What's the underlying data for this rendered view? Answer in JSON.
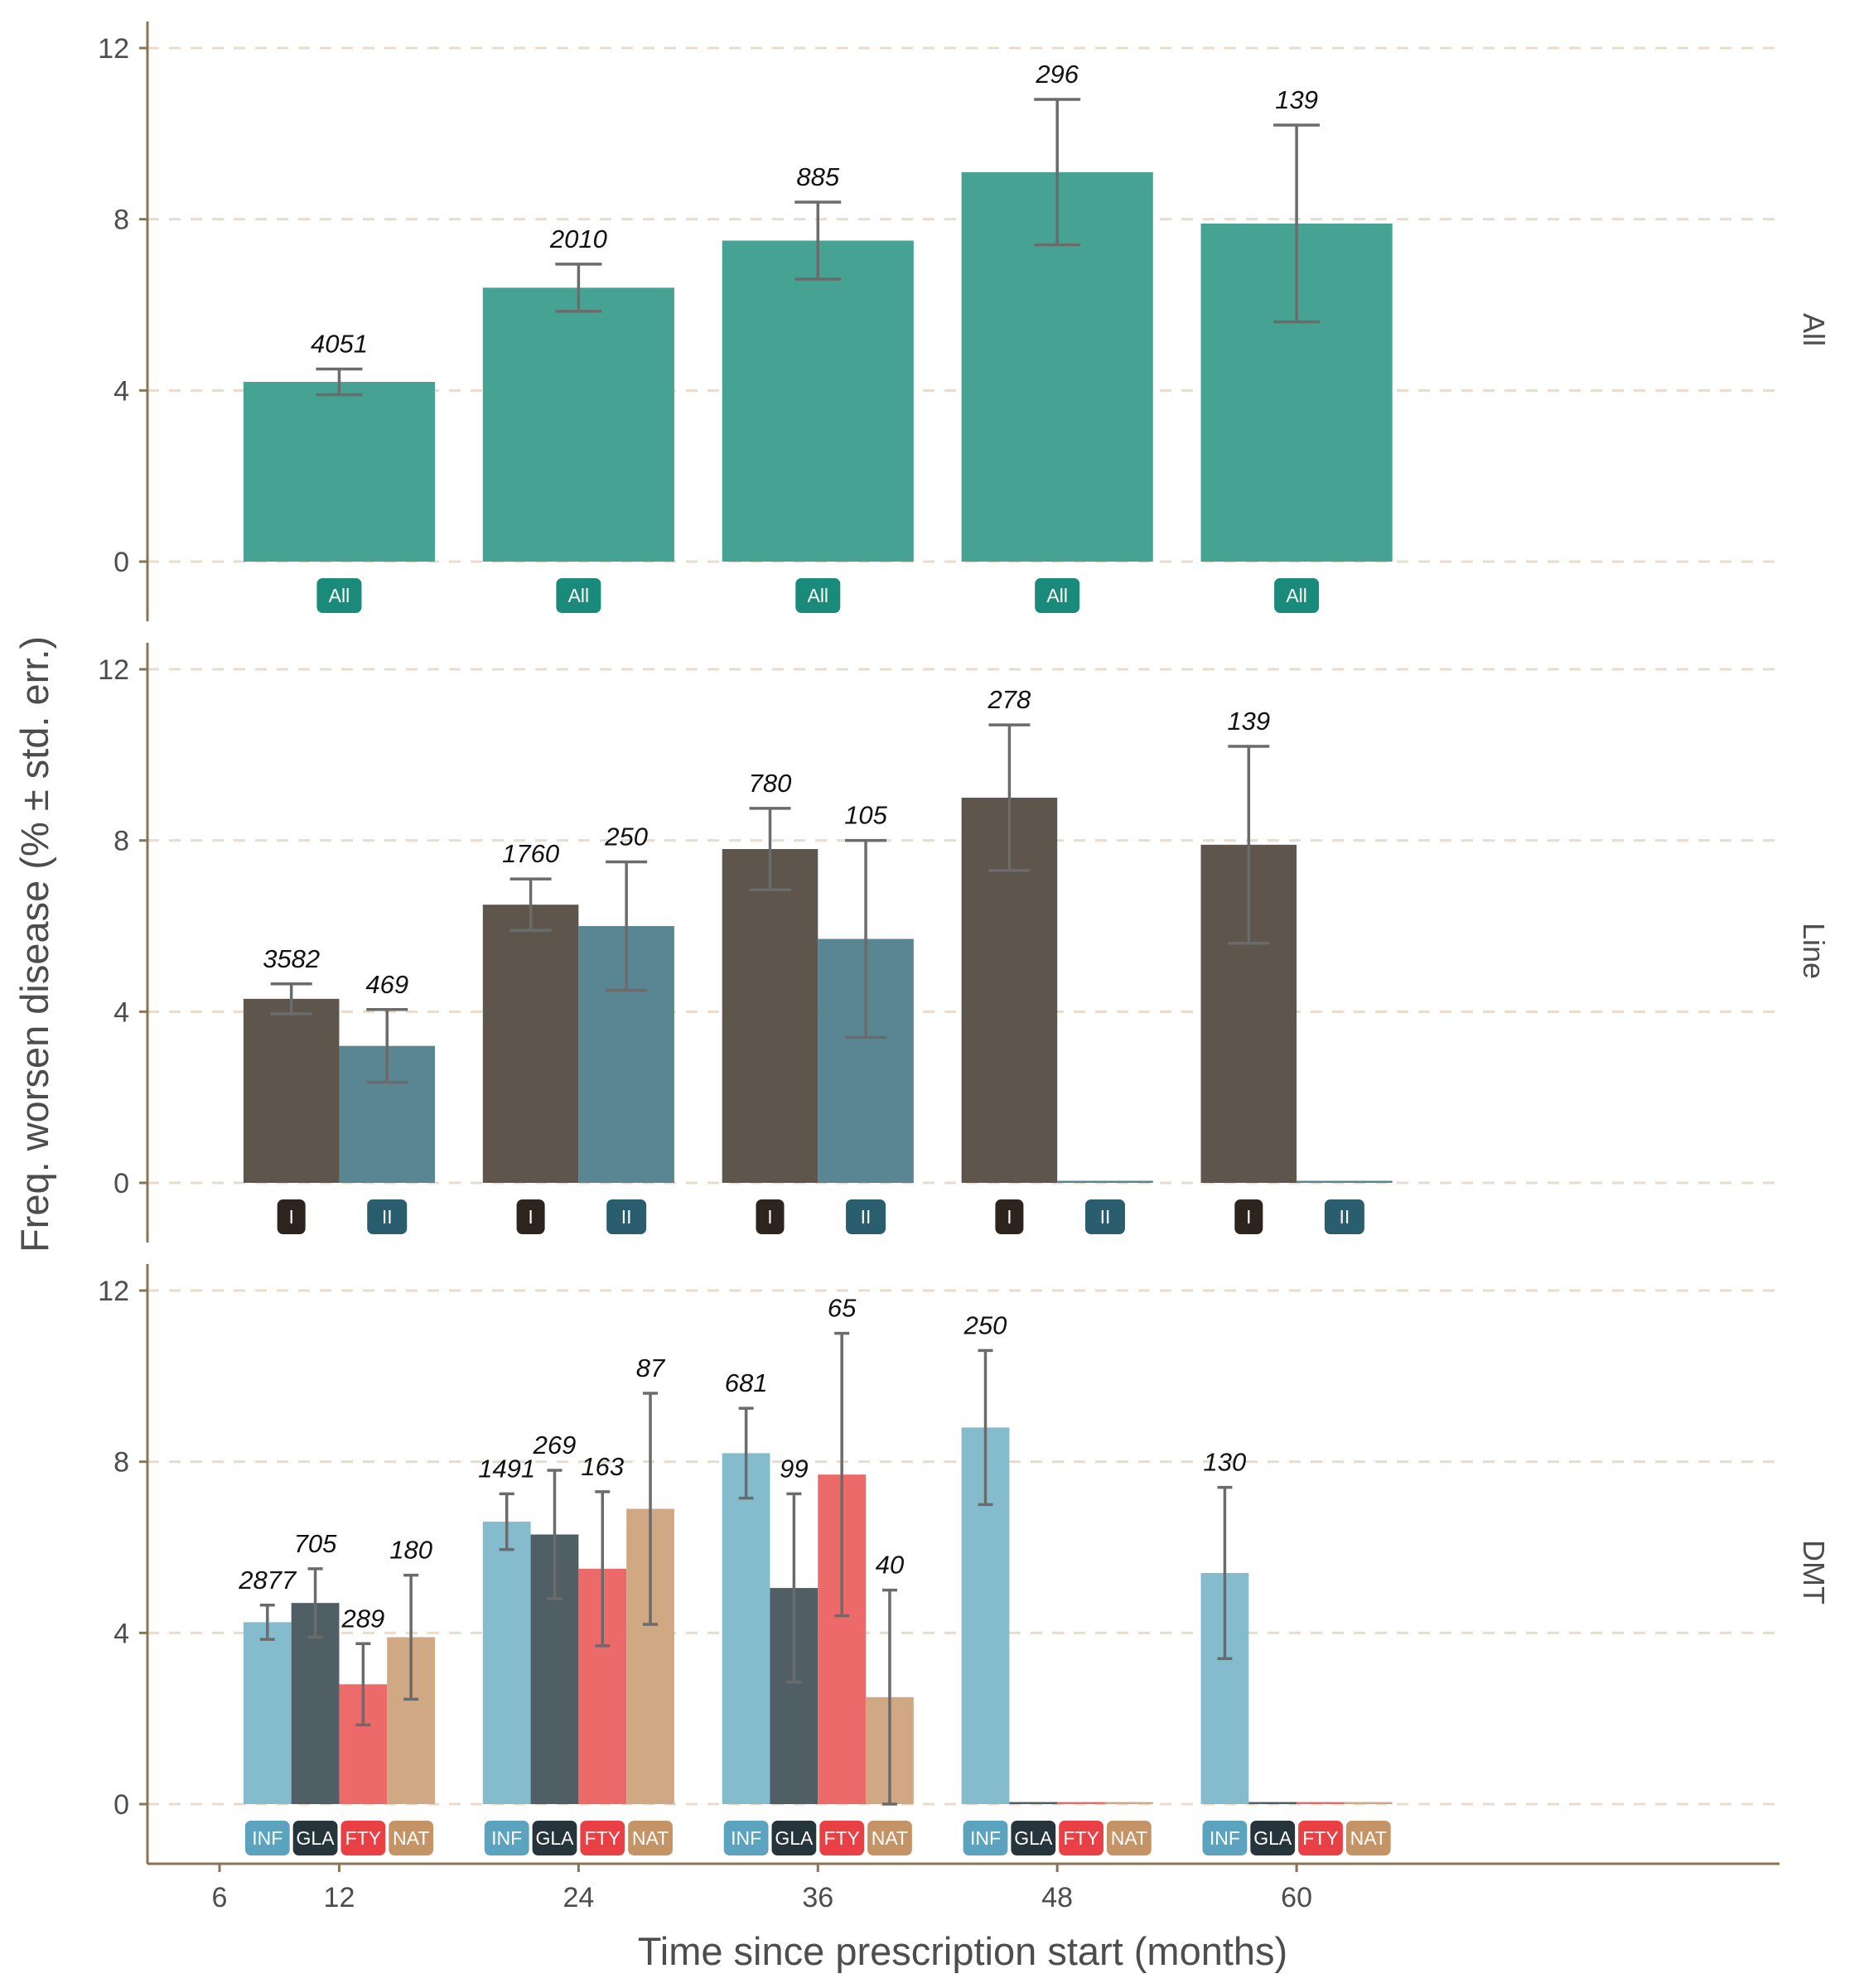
{
  "chart_data": {
    "type": "bar",
    "xlabel": "Time since prescription start (months)",
    "ylabel": "Freq. worsen disease (% ± std. err.)",
    "x_ticks": [
      "6",
      "12",
      "24",
      "36",
      "48",
      "60"
    ],
    "x_tick_values": [
      6,
      12,
      24,
      36,
      48,
      60
    ],
    "ylim": [
      -1.3,
      12.6
    ],
    "y_ticks": [
      0,
      4,
      8,
      12
    ],
    "y_tick_labels": [
      "0",
      "4",
      "8",
      "12"
    ],
    "categories": [
      "12",
      "24",
      "36",
      "48",
      "60"
    ],
    "panels": [
      {
        "strip": "All",
        "series": [
          {
            "name": "All",
            "color": "#46a394",
            "badge_color": "#1a8a7a",
            "values": [
              4.2,
              6.4,
              7.5,
              9.1,
              7.9
            ],
            "err": [
              0.3,
              0.55,
              0.9,
              1.7,
              2.3
            ],
            "n": [
              "4051",
              "2010",
              "885",
              "296",
              "139"
            ]
          }
        ]
      },
      {
        "strip": "Line",
        "series": [
          {
            "name": "I",
            "color": "#5e554c",
            "badge_color": "#2d241d",
            "values": [
              4.3,
              6.5,
              7.8,
              9.0,
              7.9
            ],
            "err": [
              0.35,
              0.6,
              0.95,
              1.7,
              2.3
            ],
            "n": [
              "3582",
              "1760",
              "780",
              "278",
              "139"
            ]
          },
          {
            "name": "II",
            "color": "#5a8592",
            "badge_color": "#2a5e6e",
            "values": [
              3.2,
              6.0,
              5.7,
              0,
              0
            ],
            "err": [
              0.85,
              1.5,
              2.3,
              null,
              null
            ],
            "n": [
              "469",
              "250",
              "105",
              "",
              ""
            ]
          }
        ]
      },
      {
        "strip": "DMT",
        "series": [
          {
            "name": "INF",
            "color": "#84bccd",
            "badge_color": "#5ba3be",
            "values": [
              4.25,
              6.6,
              8.2,
              8.8,
              5.4
            ],
            "err": [
              0.4,
              0.65,
              1.05,
              1.8,
              2.0
            ],
            "n": [
              "2877",
              "1491",
              "681",
              "250",
              "130"
            ]
          },
          {
            "name": "GLA",
            "color": "#4f5f65",
            "badge_color": "#25353b",
            "values": [
              4.7,
              6.3,
              5.05,
              0,
              0
            ],
            "err": [
              0.8,
              1.5,
              2.2,
              null,
              null
            ],
            "n": [
              "705",
              "269",
              "99",
              "",
              ""
            ]
          },
          {
            "name": "FTY",
            "color": "#ec6a6a",
            "badge_color": "#e84045",
            "values": [
              2.8,
              5.5,
              7.7,
              0,
              0
            ],
            "err": [
              0.95,
              1.8,
              3.3,
              null,
              null
            ],
            "n": [
              "289",
              "163",
              "65",
              "",
              ""
            ]
          },
          {
            "name": "NAT",
            "color": "#d0a984",
            "badge_color": "#c49467",
            "values": [
              3.9,
              6.9,
              2.5,
              0,
              0
            ],
            "err": [
              1.45,
              2.7,
              2.5,
              null,
              null
            ],
            "n": [
              "180",
              "87",
              "40",
              "",
              ""
            ]
          }
        ]
      }
    ]
  }
}
